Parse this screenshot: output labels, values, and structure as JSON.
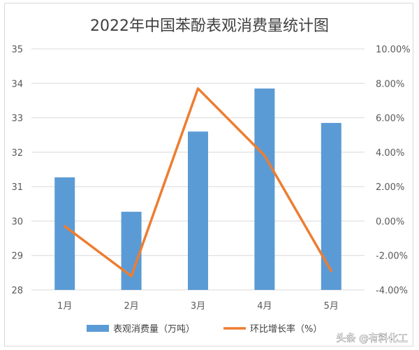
{
  "chart_data": {
    "type": "bar",
    "title": "2022年中国苯酚表观消费量统计图",
    "categories": [
      "1月",
      "2月",
      "3月",
      "4月",
      "5月"
    ],
    "series": [
      {
        "name": "表观消费量（万吨）",
        "type": "bar",
        "axis": "left",
        "color": "#5b9bd5",
        "values": [
          31.27,
          30.27,
          32.6,
          33.85,
          32.85
        ]
      },
      {
        "name": "环比增长率（%）",
        "type": "line",
        "axis": "right",
        "color": "#ed7d31",
        "values": [
          -0.3,
          -3.2,
          7.7,
          3.8,
          -2.9
        ]
      }
    ],
    "left_axis": {
      "ylim": [
        28,
        35
      ],
      "ticks": [
        "28",
        "29",
        "30",
        "31",
        "32",
        "33",
        "34",
        "35"
      ]
    },
    "right_axis": {
      "ylim": [
        -4,
        10
      ],
      "ticks": [
        "-4.00%",
        "-2.00%",
        "0.00%",
        "2.00%",
        "4.00%",
        "6.00%",
        "8.00%",
        "10.00%"
      ]
    },
    "grid": true,
    "legend_position": "bottom"
  },
  "watermark": "头条 @有料化工"
}
